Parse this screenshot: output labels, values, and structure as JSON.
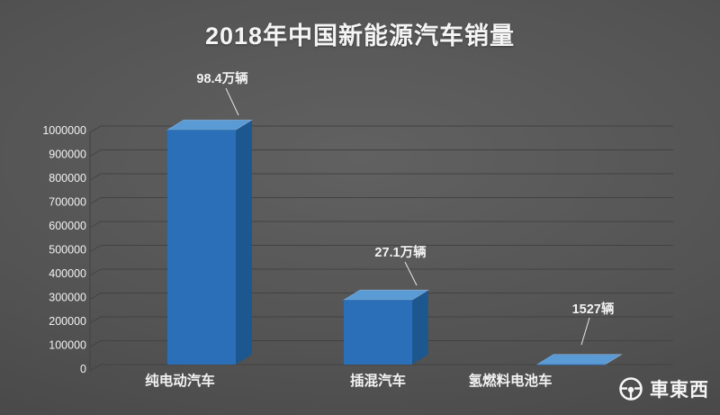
{
  "title": "2018年中国新能源汽车销量",
  "watermark": {
    "text": "車東西"
  },
  "chart_data": {
    "type": "bar",
    "style": "3d-column",
    "title": "2018年中国新能源汽车销量",
    "categories": [
      "纯电动汽车",
      "插混汽车",
      "氢燃料电池车"
    ],
    "values": [
      984000,
      271000,
      1527
    ],
    "data_labels": [
      "98.4万辆",
      "27.1万辆",
      "1527辆"
    ],
    "xlabel": "",
    "ylabel": "",
    "ylim": [
      0,
      1000000
    ],
    "ytick_step": 100000,
    "yticks": [
      0,
      100000,
      200000,
      300000,
      400000,
      500000,
      600000,
      700000,
      800000,
      900000,
      1000000
    ],
    "ytick_labels": [
      "0",
      "100000",
      "200000",
      "300000",
      "400000",
      "500000",
      "600000",
      "700000",
      "800000",
      "900000",
      "1000000"
    ],
    "grid": true,
    "legend": false,
    "colors": {
      "bar_front": "#2a6fb7",
      "bar_top": "#5b9bd5",
      "bar_side": "#1d578f",
      "background": "#4f4f4f",
      "gridline": "#424242",
      "text": "#f2f2f2",
      "leader_line": "#e8e8e8"
    }
  }
}
